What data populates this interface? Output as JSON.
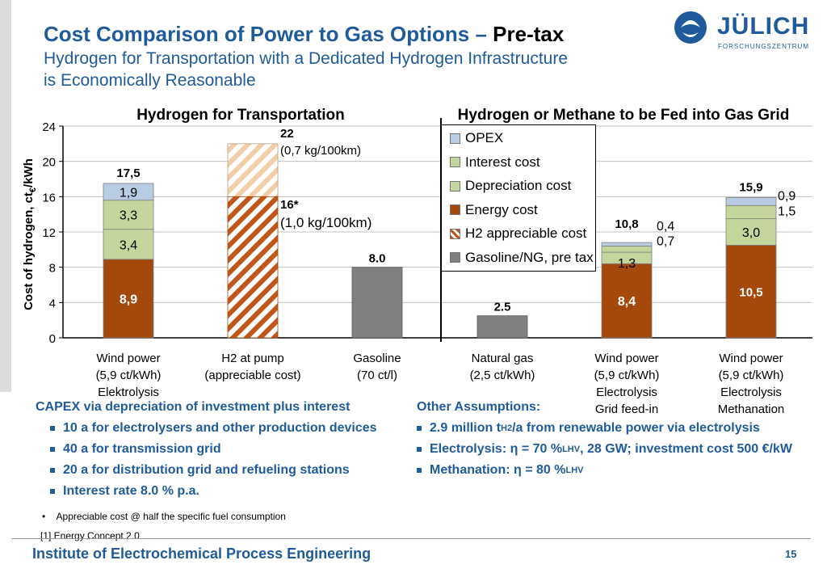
{
  "header": {
    "title_main": "Cost Comparison of Power to Gas Options – ",
    "title_suffix": "Pre-tax",
    "subtitle_line1": "Hydrogen for Transportation with a Dedicated Hydrogen Infrastructure",
    "subtitle_line2": "is Economically Reasonable"
  },
  "logo": {
    "word": "JÜLICH",
    "sub": "FORSCHUNGSZENTRUM",
    "color": "#1f5b9a"
  },
  "chart_data": {
    "type": "bar",
    "stacked": true,
    "ylabel": "Cost of hydrogen, ct€/kWh",
    "ylabel_main": "Cost of hydrogen, ct",
    "ylabel_sub": "€",
    "ylabel_tail": "/kWh",
    "ylim": [
      0,
      24
    ],
    "yticks": [
      "0",
      "4",
      "8",
      "12",
      "16",
      "20",
      "24"
    ],
    "grid": true,
    "group_titles": [
      "Hydrogen for Transportation",
      "Hydrogen or Methane to be Fed into Gas Grid"
    ],
    "categories": [
      [
        "Wind power",
        "(5,9 ct/kWh)",
        "Elektrolysis"
      ],
      [
        "H2 at pump",
        "(appreciable cost)"
      ],
      [
        "Gasoline",
        "(70 ct/l)"
      ],
      [
        "Natural gas",
        "(2,5 ct/kWh)"
      ],
      [
        "Wind power",
        "(5,9 ct/kWh)",
        "Electrolysis",
        "Grid feed-in"
      ],
      [
        "Wind power",
        "(5,9 ct/kWh)",
        "Electrolysis",
        "Methanation"
      ]
    ],
    "legend": [
      "OPEX",
      "Interest cost",
      "Depreciation cost",
      "Energy cost",
      "H2 appreciable cost",
      "Gasoline/NG, pre tax"
    ],
    "colors": {
      "opex": "#b8cce4",
      "interest": "#c3d69b",
      "depreciation": "#c3d69b",
      "energy": "#a5480b",
      "h2": "#c0561a",
      "fossil": "#808080"
    },
    "series": [
      {
        "name": "Energy cost",
        "key": "energy",
        "values": [
          8.9,
          0,
          0,
          0,
          8.4,
          10.5
        ],
        "labels": [
          "8,9",
          "",
          "",
          "",
          "8,4",
          "10,5"
        ]
      },
      {
        "name": "Depreciation cost",
        "key": "depreciation",
        "values": [
          3.4,
          0,
          0,
          0,
          1.3,
          3.0
        ],
        "labels": [
          "3,4",
          "",
          "",
          "",
          "1,3",
          "3,0"
        ]
      },
      {
        "name": "Interest cost",
        "key": "interest",
        "values": [
          3.3,
          0,
          0,
          0,
          0.7,
          1.5
        ],
        "labels": [
          "3,3",
          "",
          "",
          "",
          "0,7",
          "1,5"
        ]
      },
      {
        "name": "OPEX",
        "key": "opex",
        "values": [
          1.9,
          0,
          0,
          0,
          0.4,
          0.9
        ],
        "labels": [
          "1,9",
          "",
          "",
          "",
          "0,4",
          "0,9"
        ]
      },
      {
        "name": "H2 appreciable cost",
        "key": "h2",
        "values": [
          0,
          22,
          0,
          0,
          0,
          0
        ]
      },
      {
        "name": "Gasoline/NG, pre tax",
        "key": "fossil",
        "values": [
          0,
          0,
          8.0,
          2.5,
          0,
          0
        ]
      }
    ],
    "h2_secondary_level": 16,
    "totals": [
      "17,5",
      "22",
      "8.0",
      "2.5",
      "10,8",
      "15,9"
    ],
    "h2_annotations": {
      "top_value": "22",
      "top_note": "(0,7 kg/100km)",
      "mid_value": "16*",
      "mid_note": "(1,0 kg/100km)"
    }
  },
  "left_notes": {
    "heading": "CAPEX via depreciation of investment plus interest",
    "items": [
      "10 a for electrolysers and other production devices",
      "40 a for transmission grid",
      "20 a for distribution grid and refueling stations",
      "Interest rate 8.0 % p.a."
    ]
  },
  "right_notes": {
    "heading": "Other Assumptions:",
    "item1_a": "2.9 million t",
    "item1_sub": "H2",
    "item1_b": "/a from renewable power via electrolysis",
    "item2_a": "Electrolysis: η = 70 %",
    "item2_sub": "LHV",
    "item2_b": ", 28 GW; investment cost 500 €/kW",
    "item3_a": "Methanation: η = 80 %",
    "item3_sub": "LHV"
  },
  "footnote": "Appreciable cost @ half the specific fuel consumption",
  "reference": "[1] Energy Concept 2.0",
  "footer": {
    "institute": "Institute of Electrochemical Process Engineering",
    "page": "15"
  }
}
